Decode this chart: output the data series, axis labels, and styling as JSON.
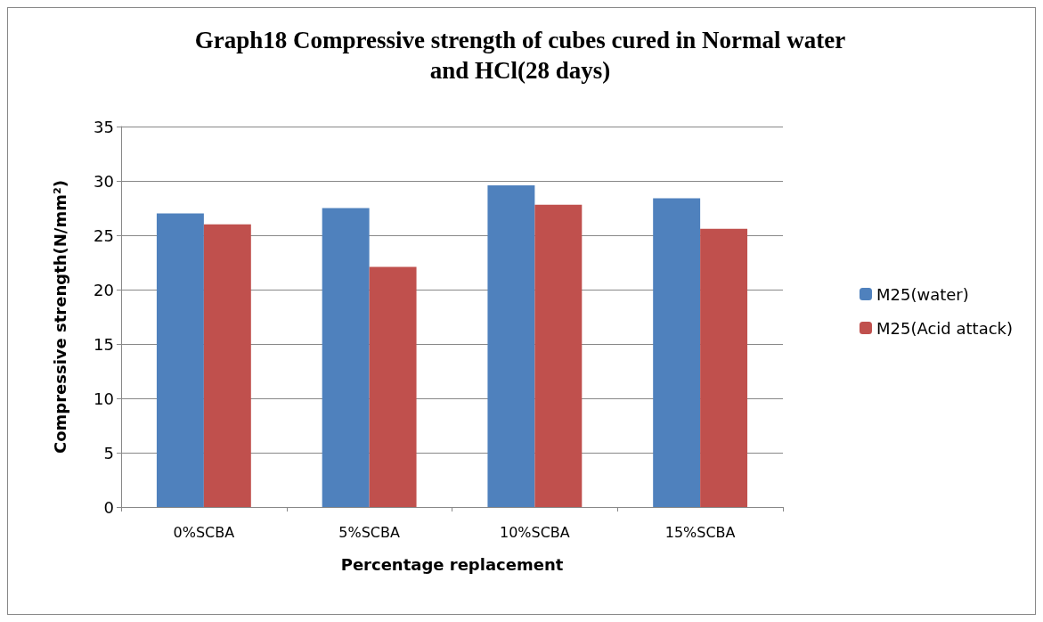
{
  "chart_data": {
    "type": "bar",
    "title": "Graph18 Compressive strength of cubes cured in Normal water\nand HCl(28 days)",
    "xlabel": "Percentage replacement",
    "ylabel": "Compressive strength(N/mm²)",
    "categories": [
      "0%SCBA",
      "5%SCBA",
      "10%SCBA",
      "15%SCBA"
    ],
    "series": [
      {
        "name": "M25(water)",
        "color": "#4f81bd",
        "values": [
          27.0,
          27.5,
          29.6,
          28.4
        ]
      },
      {
        "name": "M25(Acid attack)",
        "color": "#c0504d",
        "values": [
          26.0,
          22.1,
          27.8,
          25.6
        ]
      }
    ],
    "ylim": [
      0,
      35
    ],
    "yticks": [
      0,
      5,
      10,
      15,
      20,
      25,
      30,
      35
    ],
    "grid": "y",
    "legend": "right"
  }
}
